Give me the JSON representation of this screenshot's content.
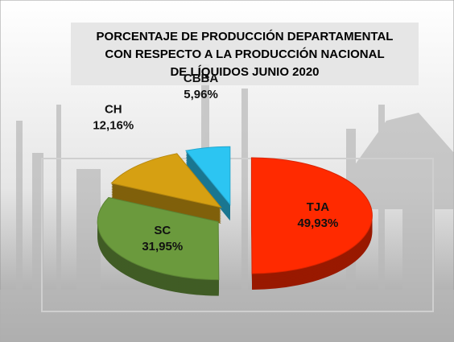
{
  "chart_data": {
    "type": "pie",
    "title": [
      "PORCENTAJE DE PRODUCCIÓN DEPARTAMENTAL",
      "CON RESPECTO A LA PRODUCCIÓN NACIONAL",
      "DE LÍQUIDOS JUNIO 2020"
    ],
    "categories": [
      "TJA",
      "SC",
      "CH",
      "CBBA"
    ],
    "values": [
      49.93,
      31.95,
      12.16,
      5.96
    ],
    "value_labels": [
      "49,93%",
      "31,95%",
      "12,16%",
      "5,96%"
    ],
    "colors": [
      "#ff2a00",
      "#6b9a3d",
      "#d6a012",
      "#2cc5f2"
    ]
  }
}
